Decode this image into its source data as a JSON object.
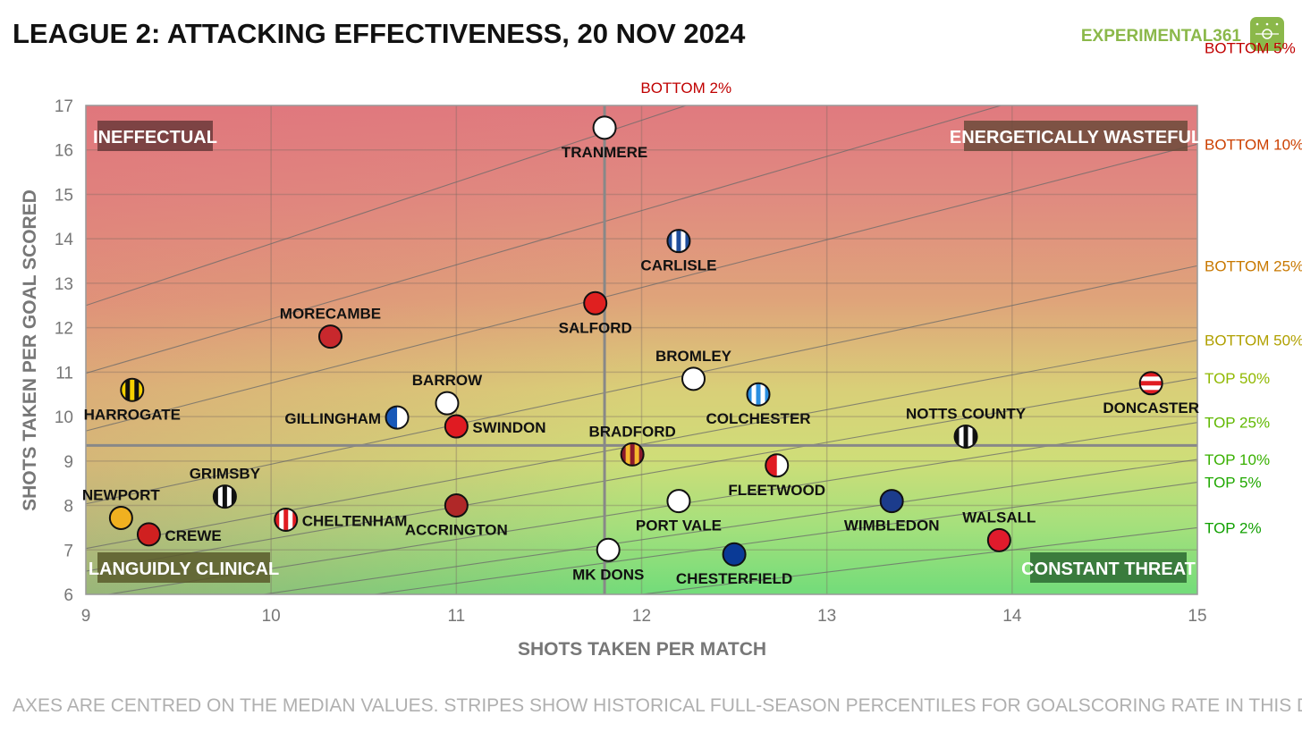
{
  "chart_data": {
    "type": "scatter",
    "title": "LEAGUE 2: ATTACKING EFFECTIVENESS, 20 NOV 2024",
    "brand": "EXPERIMENTAL361",
    "xlabel": "SHOTS TAKEN PER MATCH",
    "ylabel": "SHOTS TAKEN PER GOAL SCORED",
    "xlim": [
      9,
      15
    ],
    "ylim": [
      6,
      17
    ],
    "xticks": [
      9,
      10,
      11,
      12,
      13,
      14,
      15
    ],
    "yticks": [
      6,
      7,
      8,
      9,
      10,
      11,
      12,
      13,
      14,
      15,
      16,
      17
    ],
    "median_x": 11.8,
    "median_y": 9.35,
    "grid": true,
    "footnote": "AXES ARE CENTRED ON THE MEDIAN VALUES. STRIPES SHOW HISTORICAL FULL-SEASON PERCENTILES FOR GOALSCORING RATE IN THIS DIVISION.",
    "quadrants": [
      {
        "label": "INEFFECTUAL",
        "position": "top-left"
      },
      {
        "label": "ENERGETICALLY WASTEFUL",
        "position": "top-right"
      },
      {
        "label": "LANGUIDLY CLINICAL",
        "position": "bottom-left"
      },
      {
        "label": "CONSTANT THREAT",
        "position": "bottom-right"
      }
    ],
    "percentile_lines": [
      {
        "label": "BOTTOM 2%",
        "goals_per_match": 0.72,
        "color": "#c00000",
        "label_at": "top"
      },
      {
        "label": "BOTTOM 5%",
        "goals_per_match": 0.82,
        "color": "#c00000"
      },
      {
        "label": "BOTTOM 10%",
        "goals_per_match": 0.93,
        "color": "#cc4000"
      },
      {
        "label": "BOTTOM 25%",
        "goals_per_match": 1.12,
        "color": "#c87800"
      },
      {
        "label": "BOTTOM 50%",
        "goals_per_match": 1.28,
        "color": "#b0a000"
      },
      {
        "label": "TOP 50%",
        "goals_per_match": 1.38,
        "color": "#90b800"
      },
      {
        "label": "TOP 25%",
        "goals_per_match": 1.52,
        "color": "#60b800"
      },
      {
        "label": "TOP 10%",
        "goals_per_match": 1.66,
        "color": "#38b000"
      },
      {
        "label": "TOP 5%",
        "goals_per_match": 1.76,
        "color": "#20a800"
      },
      {
        "label": "TOP 2%",
        "goals_per_match": 2.0,
        "color": "#10a000"
      }
    ],
    "teams": [
      {
        "name": "TRANMERE",
        "x": 11.8,
        "y": 16.5,
        "label_pos": "below",
        "colors": [
          "#ffffff"
        ],
        "pattern": "solid"
      },
      {
        "name": "CARLISLE",
        "x": 12.2,
        "y": 13.95,
        "label_pos": "below",
        "colors": [
          "#1f4e9c",
          "#ffffff"
        ],
        "pattern": "stripes"
      },
      {
        "name": "SALFORD",
        "x": 11.75,
        "y": 12.55,
        "label_pos": "below",
        "colors": [
          "#e02020"
        ],
        "pattern": "solid"
      },
      {
        "name": "MORECAMBE",
        "x": 10.32,
        "y": 11.8,
        "label_pos": "above",
        "colors": [
          "#c8282d"
        ],
        "pattern": "solid"
      },
      {
        "name": "HARROGATE",
        "x": 9.25,
        "y": 10.6,
        "label_pos": "below",
        "colors": [
          "#f5d000",
          "#111111"
        ],
        "pattern": "stripes"
      },
      {
        "name": "BARROW",
        "x": 10.95,
        "y": 10.3,
        "label_pos": "above",
        "colors": [
          "#ffffff"
        ],
        "pattern": "solid"
      },
      {
        "name": "GILLINGHAM",
        "x": 10.68,
        "y": 9.98,
        "label_pos": "left",
        "colors": [
          "#1858b8",
          "#ffffff"
        ],
        "pattern": "halves"
      },
      {
        "name": "SWINDON",
        "x": 11.0,
        "y": 9.78,
        "label_pos": "right",
        "colors": [
          "#e01b22"
        ],
        "pattern": "solid"
      },
      {
        "name": "BROMLEY",
        "x": 12.28,
        "y": 10.85,
        "label_pos": "above",
        "colors": [
          "#ffffff"
        ],
        "pattern": "solid"
      },
      {
        "name": "COLCHESTER",
        "x": 12.63,
        "y": 10.5,
        "label_pos": "below",
        "colors": [
          "#2a8ee0",
          "#ffffff"
        ],
        "pattern": "stripes"
      },
      {
        "name": "DONCASTER",
        "x": 14.75,
        "y": 10.75,
        "label_pos": "below",
        "colors": [
          "#e01b22",
          "#ffffff"
        ],
        "pattern": "hoops"
      },
      {
        "name": "NOTTS COUNTY",
        "x": 13.75,
        "y": 9.55,
        "label_pos": "above",
        "colors": [
          "#111111",
          "#ffffff"
        ],
        "pattern": "stripes"
      },
      {
        "name": "BRADFORD",
        "x": 11.95,
        "y": 9.15,
        "label_pos": "above",
        "colors": [
          "#8b1a2b",
          "#f5b82e"
        ],
        "pattern": "stripes"
      },
      {
        "name": "FLEETWOOD",
        "x": 12.73,
        "y": 8.9,
        "label_pos": "below",
        "colors": [
          "#e01b22",
          "#ffffff"
        ],
        "pattern": "halves"
      },
      {
        "name": "GRIMSBY",
        "x": 9.75,
        "y": 8.2,
        "label_pos": "above",
        "colors": [
          "#111111",
          "#ffffff"
        ],
        "pattern": "stripes"
      },
      {
        "name": "NEWPORT",
        "x": 9.19,
        "y": 7.72,
        "label_pos": "above",
        "colors": [
          "#f0b020"
        ],
        "pattern": "solid"
      },
      {
        "name": "CREWE",
        "x": 9.34,
        "y": 7.35,
        "label_pos": "right",
        "colors": [
          "#d02020"
        ],
        "pattern": "solid"
      },
      {
        "name": "CHELTENHAM",
        "x": 10.08,
        "y": 7.68,
        "label_pos": "right",
        "colors": [
          "#e01b22",
          "#ffffff"
        ],
        "pattern": "stripes"
      },
      {
        "name": "ACCRINGTON",
        "x": 11.0,
        "y": 8.0,
        "label_pos": "below",
        "colors": [
          "#b02828"
        ],
        "pattern": "solid"
      },
      {
        "name": "PORT VALE",
        "x": 12.2,
        "y": 8.1,
        "label_pos": "below",
        "colors": [
          "#ffffff"
        ],
        "pattern": "solid"
      },
      {
        "name": "WIMBLEDON",
        "x": 13.35,
        "y": 8.1,
        "label_pos": "below",
        "colors": [
          "#1c3c8c"
        ],
        "pattern": "solid"
      },
      {
        "name": "WALSALL",
        "x": 13.93,
        "y": 7.22,
        "label_pos": "above",
        "colors": [
          "#e01b2c"
        ],
        "pattern": "solid"
      },
      {
        "name": "MK DONS",
        "x": 11.82,
        "y": 7.0,
        "label_pos": "below",
        "colors": [
          "#ffffff"
        ],
        "pattern": "solid"
      },
      {
        "name": "CHESTERFIELD",
        "x": 12.5,
        "y": 6.9,
        "label_pos": "below",
        "colors": [
          "#0a3a96"
        ],
        "pattern": "solid"
      }
    ]
  }
}
